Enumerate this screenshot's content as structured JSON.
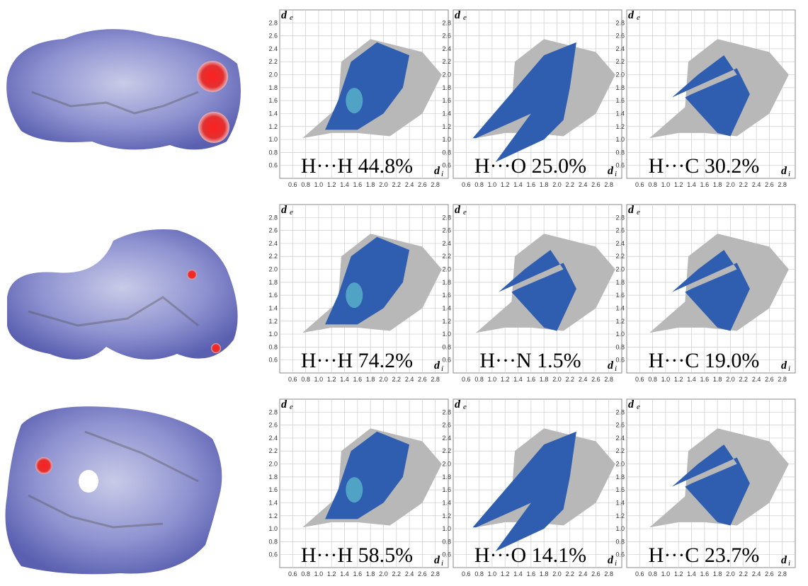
{
  "axis_labels": {
    "y": "d",
    "y_sub": "e",
    "x": "d",
    "x_sub": "i"
  },
  "ticks": [
    "0.6",
    "0.8",
    "1.0",
    "1.2",
    "1.4",
    "1.6",
    "1.8",
    "2.0",
    "2.2",
    "2.4",
    "2.6",
    "2.8"
  ],
  "rows": [
    {
      "panels": [
        {
          "label": "H···H 44.8%"
        },
        {
          "label": "H···O 25.0%"
        },
        {
          "label": "H···C 30.2%"
        }
      ]
    },
    {
      "panels": [
        {
          "label": "H···H 74.2%"
        },
        {
          "label": "H···N 1.5%"
        },
        {
          "label": "H···C 19.0%"
        }
      ]
    },
    {
      "panels": [
        {
          "label": "H···H 58.5%"
        },
        {
          "label": "H···O 14.1%"
        },
        {
          "label": "H···C 23.7%"
        }
      ]
    }
  ]
}
